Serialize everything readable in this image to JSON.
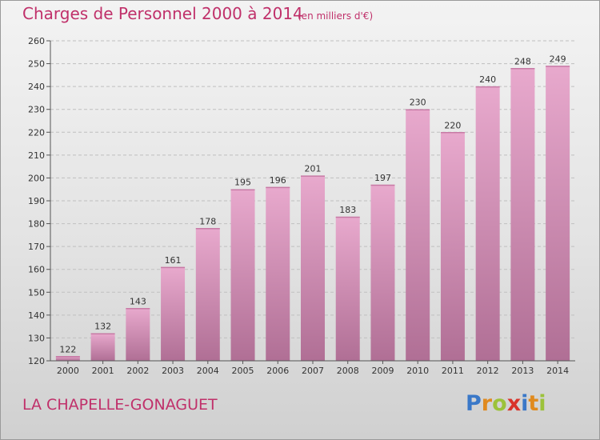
{
  "header": {
    "title": "Charges de Personnel 2000 à 2014",
    "subtitle": "(en milliers d'€)"
  },
  "footer": {
    "place": "LA CHAPELLE-GONAGUET",
    "logo_letters": [
      {
        "ch": "P",
        "color": "#3a78c8"
      },
      {
        "ch": "r",
        "color": "#e08a1e"
      },
      {
        "ch": "o",
        "color": "#9cc23a"
      },
      {
        "ch": "x",
        "color": "#d9342b"
      },
      {
        "ch": "i",
        "color": "#3a78c8"
      },
      {
        "ch": "t",
        "color": "#e08a1e"
      },
      {
        "ch": "i",
        "color": "#9cc23a"
      }
    ]
  },
  "colors": {
    "bar_light": "#e8a9cd",
    "bar_dark": "#b06f95",
    "title": "#c0306a"
  },
  "chart_data": {
    "type": "bar",
    "categories": [
      "2000",
      "2001",
      "2002",
      "2003",
      "2004",
      "2005",
      "2006",
      "2007",
      "2008",
      "2009",
      "2010",
      "2011",
      "2012",
      "2013",
      "2014"
    ],
    "values": [
      122,
      132,
      143,
      161,
      178,
      195,
      196,
      201,
      183,
      197,
      230,
      220,
      240,
      248,
      249
    ],
    "ylim": [
      120,
      260
    ],
    "yticks": [
      120,
      130,
      140,
      150,
      160,
      170,
      180,
      190,
      200,
      210,
      220,
      230,
      240,
      250,
      260
    ],
    "grid": true
  }
}
